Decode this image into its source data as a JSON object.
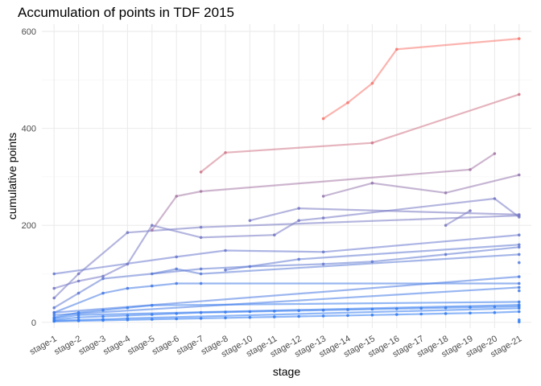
{
  "chart_data": {
    "type": "line",
    "title": "Accumulation of points in TDF 2015",
    "xlabel": "stage",
    "ylabel": "cumulative points",
    "ylim": [
      0,
      600
    ],
    "yticks": [
      0,
      200,
      400,
      600
    ],
    "grid": true,
    "legend": "none",
    "categories": [
      "stage-1",
      "stage-2",
      "stage-3",
      "stage-4",
      "stage-5",
      "stage-6",
      "stage-7",
      "stage-8",
      "stage-10",
      "stage-11",
      "stage-12",
      "stage-13",
      "stage-14",
      "stage-15",
      "stage-16",
      "stage-17",
      "stage-18",
      "stage-19",
      "stage-20",
      "stage-21"
    ],
    "color_low": "#2a7bf7",
    "color_high": "#f8766d",
    "series": [
      {
        "values": [
          null,
          null,
          null,
          null,
          null,
          null,
          null,
          null,
          null,
          null,
          null,
          420,
          453,
          493,
          563,
          null,
          null,
          null,
          null,
          585
        ]
      },
      {
        "values": [
          null,
          null,
          null,
          null,
          null,
          null,
          310,
          350,
          null,
          null,
          null,
          null,
          null,
          370,
          null,
          null,
          null,
          null,
          null,
          470
        ]
      },
      {
        "values": [
          null,
          null,
          null,
          null,
          190,
          260,
          270,
          null,
          null,
          null,
          null,
          null,
          null,
          null,
          null,
          null,
          null,
          315,
          348,
          null
        ]
      },
      {
        "values": [
          null,
          null,
          null,
          null,
          null,
          null,
          null,
          null,
          null,
          null,
          null,
          260,
          null,
          287,
          null,
          null,
          267,
          null,
          null,
          304
        ]
      },
      {
        "values": [
          null,
          null,
          null,
          null,
          null,
          null,
          null,
          null,
          210,
          null,
          235,
          null,
          null,
          null,
          null,
          null,
          null,
          null,
          null,
          222
        ]
      },
      {
        "values": [
          50,
          100,
          null,
          185,
          null,
          null,
          196,
          null,
          null,
          null,
          null,
          null,
          null,
          null,
          null,
          null,
          null,
          null,
          null,
          220
        ]
      },
      {
        "values": [
          70,
          85,
          95,
          120,
          200,
          null,
          175,
          null,
          null,
          180,
          210,
          215,
          null,
          null,
          null,
          null,
          null,
          null,
          255,
          217
        ]
      },
      {
        "values": [
          100,
          null,
          null,
          null,
          null,
          135,
          null,
          148,
          null,
          null,
          null,
          145,
          null,
          null,
          null,
          null,
          null,
          null,
          null,
          180
        ]
      },
      {
        "values": [
          null,
          null,
          null,
          null,
          null,
          null,
          null,
          108,
          null,
          null,
          130,
          null,
          null,
          null,
          null,
          null,
          null,
          null,
          null,
          160
        ]
      },
      {
        "values": [
          null,
          null,
          null,
          null,
          null,
          null,
          null,
          null,
          null,
          null,
          null,
          null,
          null,
          null,
          null,
          null,
          200,
          230,
          null,
          null
        ]
      },
      {
        "values": [
          30,
          60,
          90,
          null,
          null,
          null,
          110,
          null,
          115,
          null,
          null,
          120,
          null,
          125,
          null,
          null,
          140,
          null,
          null,
          155
        ]
      },
      {
        "values": [
          null,
          null,
          null,
          null,
          100,
          110,
          100,
          null,
          null,
          null,
          null,
          null,
          null,
          null,
          null,
          null,
          null,
          null,
          null,
          140
        ]
      },
      {
        "values": [
          null,
          null,
          null,
          null,
          null,
          null,
          null,
          null,
          null,
          null,
          null,
          null,
          null,
          null,
          null,
          null,
          null,
          null,
          null,
          123
        ]
      },
      {
        "values": [
          20,
          null,
          null,
          null,
          null,
          null,
          null,
          null,
          null,
          null,
          null,
          null,
          null,
          null,
          null,
          null,
          null,
          null,
          null,
          94
        ]
      },
      {
        "values": [
          20,
          null,
          60,
          70,
          75,
          80,
          80,
          null,
          null,
          null,
          null,
          null,
          null,
          null,
          null,
          null,
          null,
          null,
          null,
          80
        ]
      },
      {
        "values": [
          15,
          null,
          null,
          null,
          null,
          null,
          null,
          null,
          null,
          null,
          null,
          null,
          null,
          null,
          null,
          null,
          null,
          null,
          null,
          72
        ]
      },
      {
        "values": [
          null,
          null,
          null,
          null,
          null,
          null,
          null,
          null,
          null,
          null,
          null,
          null,
          null,
          null,
          null,
          null,
          null,
          null,
          null,
          65
        ]
      },
      {
        "values": [
          10,
          20,
          25,
          30,
          35,
          null,
          null,
          null,
          null,
          null,
          null,
          null,
          null,
          null,
          null,
          null,
          null,
          null,
          null,
          42
        ]
      },
      {
        "values": [
          8,
          15,
          null,
          null,
          null,
          null,
          null,
          null,
          null,
          null,
          null,
          null,
          null,
          null,
          null,
          null,
          null,
          null,
          null,
          36
        ]
      },
      {
        "values": [
          5,
          10,
          12,
          14,
          16,
          18,
          20,
          21,
          22,
          23,
          24,
          25,
          26,
          27,
          28,
          29,
          30,
          31,
          32,
          33
        ]
      },
      {
        "values": [
          3,
          5,
          6,
          8,
          null,
          null,
          null,
          null,
          null,
          null,
          null,
          null,
          null,
          null,
          null,
          null,
          null,
          null,
          null,
          29
        ]
      },
      {
        "values": [
          2,
          3,
          4,
          5,
          6,
          7,
          8,
          9,
          10,
          11,
          12,
          13,
          14,
          15,
          16,
          17,
          18,
          19,
          20,
          22
        ]
      },
      {
        "values": [
          null,
          null,
          null,
          null,
          null,
          null,
          null,
          null,
          null,
          null,
          null,
          null,
          null,
          null,
          null,
          null,
          null,
          null,
          null,
          5
        ]
      },
      {
        "values": [
          null,
          null,
          null,
          null,
          null,
          null,
          null,
          null,
          null,
          null,
          null,
          null,
          null,
          null,
          null,
          null,
          null,
          null,
          null,
          1
        ]
      }
    ]
  }
}
